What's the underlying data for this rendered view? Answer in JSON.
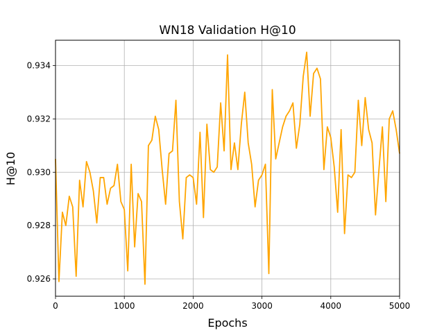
{
  "chart_data": {
    "type": "line",
    "title": "WN18 Validation H@10",
    "xlabel": "Epochs",
    "ylabel": "H@10",
    "xlim": [
      0,
      5000
    ],
    "ylim": [
      0.92535,
      0.93495
    ],
    "grid": true,
    "xticks": [
      0,
      1000,
      2000,
      3000,
      4000,
      5000
    ],
    "xtick_labels": [
      "0",
      "1000",
      "2000",
      "3000",
      "4000",
      "5000"
    ],
    "yticks": [
      0.926,
      0.928,
      0.93,
      0.932,
      0.934
    ],
    "ytick_labels": [
      "0.926",
      "0.928",
      "0.930",
      "0.932",
      "0.934"
    ],
    "series": [
      {
        "color": "#ffa500",
        "x": [
          0,
          50,
          100,
          150,
          200,
          250,
          300,
          350,
          400,
          450,
          500,
          550,
          600,
          650,
          700,
          750,
          800,
          850,
          900,
          950,
          1000,
          1050,
          1100,
          1150,
          1200,
          1250,
          1300,
          1350,
          1400,
          1450,
          1500,
          1550,
          1600,
          1650,
          1700,
          1750,
          1800,
          1850,
          1900,
          1950,
          2000,
          2050,
          2100,
          2150,
          2200,
          2250,
          2300,
          2350,
          2400,
          2450,
          2500,
          2550,
          2600,
          2650,
          2700,
          2750,
          2800,
          2850,
          2900,
          2950,
          3000,
          3050,
          3100,
          3150,
          3200,
          3250,
          3300,
          3350,
          3400,
          3450,
          3500,
          3550,
          3600,
          3650,
          3700,
          3750,
          3800,
          3850,
          3900,
          3950,
          4000,
          4050,
          4100,
          4150,
          4200,
          4250,
          4300,
          4350,
          4400,
          4450,
          4500,
          4550,
          4600,
          4650,
          4700,
          4750,
          4800,
          4850,
          4900,
          4950,
          5000
        ],
        "values": [
          0.9305,
          0.9259,
          0.9285,
          0.928,
          0.9291,
          0.9287,
          0.9261,
          0.9297,
          0.9287,
          0.9304,
          0.93,
          0.9293,
          0.9281,
          0.9298,
          0.9298,
          0.9288,
          0.9294,
          0.9295,
          0.9303,
          0.9289,
          0.9286,
          0.9263,
          0.9303,
          0.9272,
          0.9292,
          0.9289,
          0.9258,
          0.931,
          0.9312,
          0.9321,
          0.9316,
          0.9301,
          0.9288,
          0.9307,
          0.9308,
          0.9327,
          0.9289,
          0.9275,
          0.9298,
          0.9299,
          0.9298,
          0.9288,
          0.9315,
          0.9283,
          0.9318,
          0.9301,
          0.93,
          0.9302,
          0.9326,
          0.9308,
          0.9344,
          0.9301,
          0.9311,
          0.9301,
          0.9318,
          0.933,
          0.9311,
          0.9303,
          0.9287,
          0.9297,
          0.9299,
          0.9303,
          0.9262,
          0.9331,
          0.9305,
          0.9311,
          0.9317,
          0.9321,
          0.9323,
          0.9326,
          0.9309,
          0.9318,
          0.9336,
          0.9345,
          0.9321,
          0.9337,
          0.9339,
          0.9335,
          0.9301,
          0.9317,
          0.9313,
          0.9302,
          0.9285,
          0.9316,
          0.9277,
          0.9299,
          0.9298,
          0.93,
          0.9327,
          0.931,
          0.9328,
          0.9316,
          0.9311,
          0.9284,
          0.9301,
          0.9317,
          0.9289,
          0.932,
          0.9323,
          0.9316,
          0.9307
        ]
      }
    ]
  }
}
